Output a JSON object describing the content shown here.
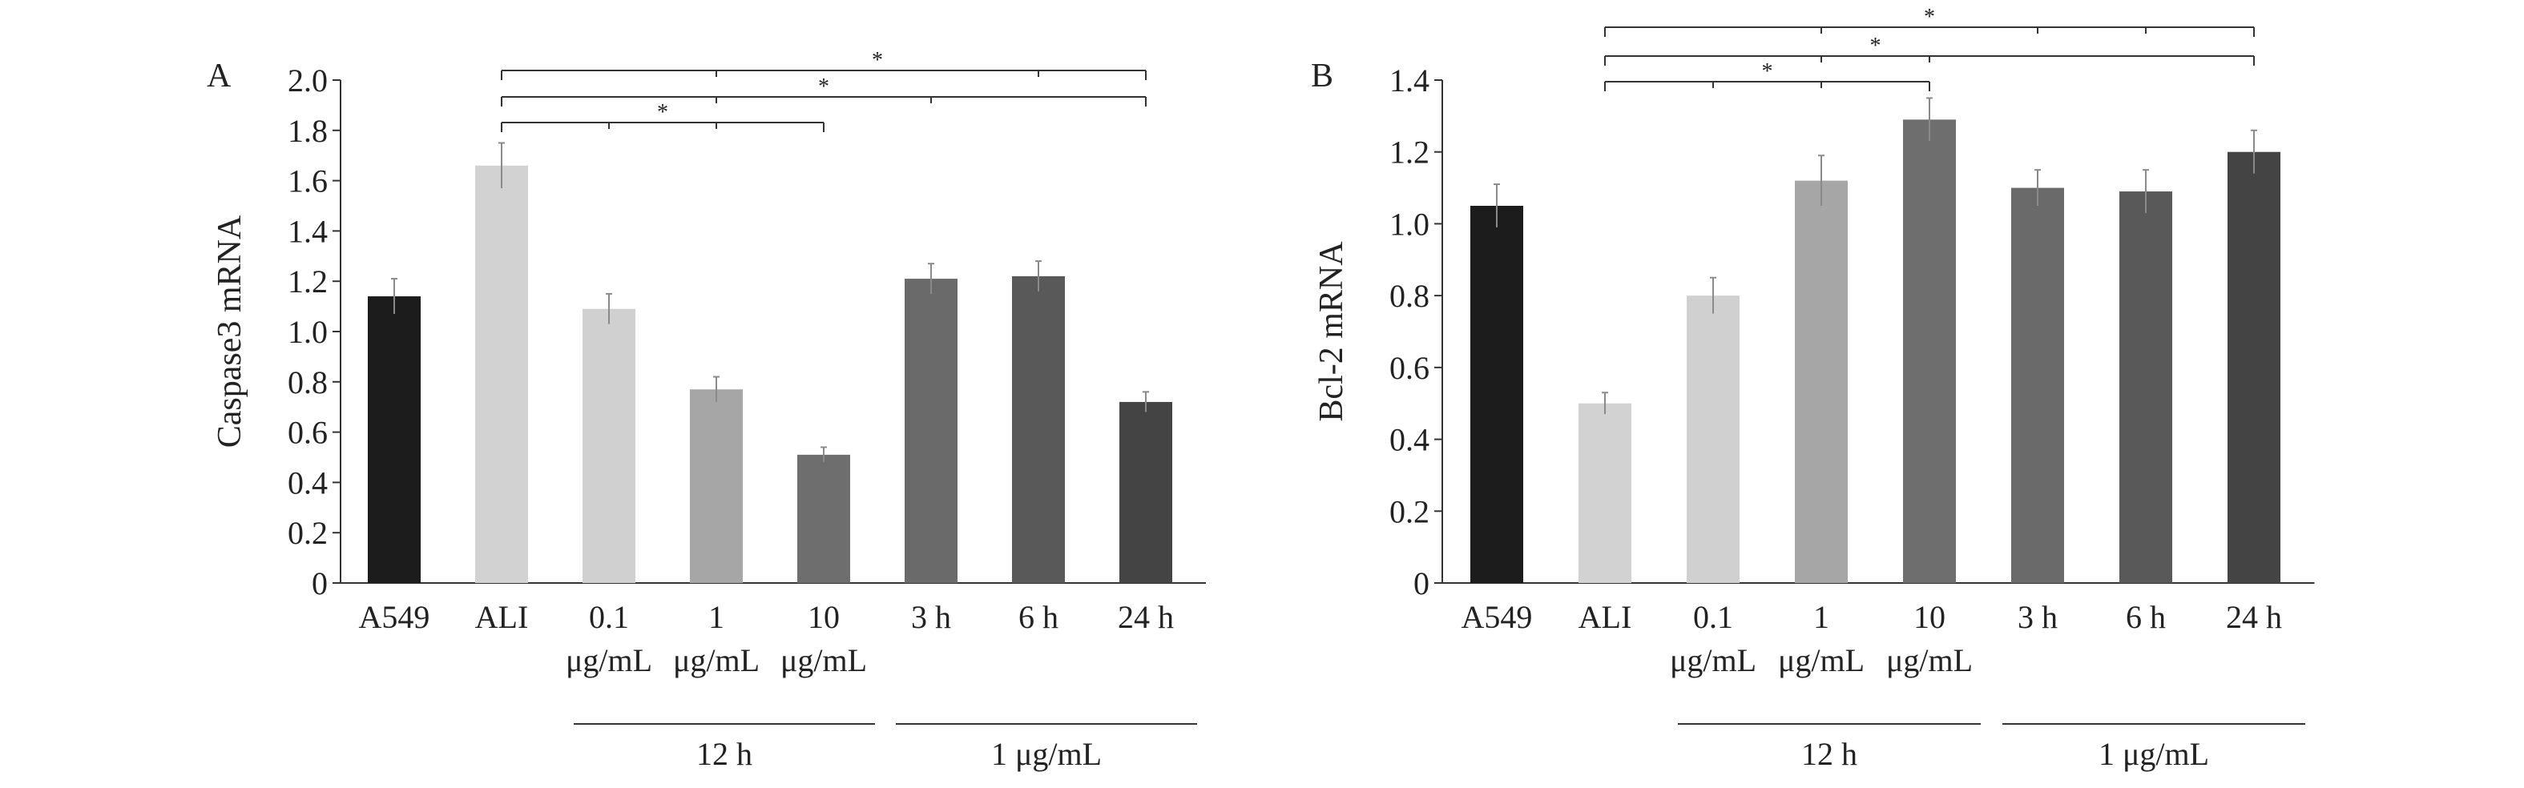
{
  "chart_data": [
    {
      "type": "bar",
      "panel_label": "A",
      "ylabel": "Caspase3 mRNA",
      "ylim": [
        0,
        2.0
      ],
      "yticks": [
        "0",
        "0.2",
        "0.4",
        "0.6",
        "0.8",
        "1.0",
        "1.2",
        "1.4",
        "1.6",
        "1.8",
        "2.0"
      ],
      "categories": [
        "A549",
        "ALI",
        "0.1",
        "1",
        "10",
        "3 h",
        "6 h",
        "24 h"
      ],
      "sub_labels": [
        "",
        "",
        "μg/mL",
        "μg/mL",
        "μg/mL",
        "",
        "",
        ""
      ],
      "values": [
        1.14,
        1.66,
        1.09,
        0.77,
        0.51,
        1.21,
        1.22,
        0.72
      ],
      "errors": [
        0.07,
        0.09,
        0.06,
        0.05,
        0.03,
        0.06,
        0.06,
        0.04
      ],
      "colors": [
        "#1c1c1c",
        "#d2d2d2",
        "#d0d0d0",
        "#a6a6a6",
        "#6e6e6e",
        "#6a6a6a",
        "#595959",
        "#444444"
      ],
      "groups": [
        {
          "label": "12 h",
          "from": 2,
          "to": 4
        },
        {
          "label": "1 μg/mL",
          "from": 5,
          "to": 7
        }
      ],
      "significance": [
        {
          "from": 1,
          "to": 7,
          "ticks": [
            3,
            6
          ],
          "label": "*"
        },
        {
          "from": 1,
          "to": 7,
          "ticks": [
            3,
            5
          ],
          "label": "*"
        },
        {
          "from": 1,
          "to": 4,
          "ticks": [
            2,
            3
          ],
          "label": "*"
        }
      ]
    },
    {
      "type": "bar",
      "panel_label": "B",
      "ylabel": "Bcl-2 mRNA",
      "ylim": [
        0,
        1.4
      ],
      "yticks": [
        "0",
        "0.2",
        "0.4",
        "0.6",
        "0.8",
        "1.0",
        "1.2",
        "1.4"
      ],
      "categories": [
        "A549",
        "ALI",
        "0.1",
        "1",
        "10",
        "3 h",
        "6 h",
        "24 h"
      ],
      "sub_labels": [
        "",
        "",
        "μg/mL",
        "μg/mL",
        "μg/mL",
        "",
        "",
        ""
      ],
      "values": [
        1.05,
        0.5,
        0.8,
        1.12,
        1.29,
        1.1,
        1.09,
        1.2
      ],
      "errors": [
        0.06,
        0.03,
        0.05,
        0.07,
        0.06,
        0.05,
        0.06,
        0.06
      ],
      "colors": [
        "#1c1c1c",
        "#d2d2d2",
        "#d0d0d0",
        "#a6a6a6",
        "#6e6e6e",
        "#6a6a6a",
        "#595959",
        "#444444"
      ],
      "groups": [
        {
          "label": "12 h",
          "from": 2,
          "to": 4
        },
        {
          "label": "1 μg/mL",
          "from": 5,
          "to": 7
        }
      ],
      "significance": [
        {
          "from": 1,
          "to": 7,
          "ticks": [
            3,
            5,
            6
          ],
          "label": "*"
        },
        {
          "from": 1,
          "to": 7,
          "ticks": [
            3,
            4
          ],
          "label": "*"
        },
        {
          "from": 1,
          "to": 4,
          "ticks": [
            2,
            3
          ],
          "label": "*"
        }
      ]
    }
  ]
}
